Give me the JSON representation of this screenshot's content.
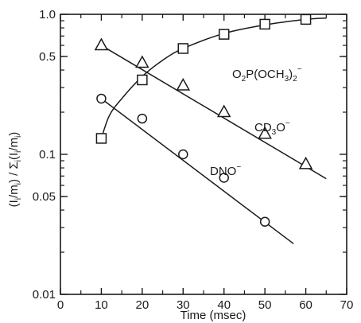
{
  "chart_data": {
    "type": "scatter",
    "xlabel": "Time (msec)",
    "ylabel": "(I_i/m_i)/Σ_i(I_i/m_i)",
    "xlim": [
      0,
      70
    ],
    "ylim": [
      0.01,
      1.0
    ],
    "yscale": "log",
    "grid": false,
    "xticks": [
      0,
      10,
      20,
      30,
      40,
      50,
      60,
      70
    ],
    "xtick_labels": [
      "0",
      "10",
      "20",
      "30",
      "40",
      "50",
      "60",
      "70"
    ],
    "yticks": [
      0.01,
      0.05,
      0.1,
      0.5,
      1.0
    ],
    "ytick_labels": [
      "0.01",
      "0.05",
      "0.1",
      "0.5",
      "1.0"
    ],
    "series": [
      {
        "name": "O2P(OCH3)2-",
        "marker": "square",
        "x": [
          10,
          20,
          30,
          40,
          50,
          60
        ],
        "y": [
          0.13,
          0.34,
          0.57,
          0.72,
          0.85,
          0.92
        ],
        "fit_x": [
          10,
          12,
          15,
          20,
          25,
          30,
          40,
          50,
          60,
          65
        ],
        "fit_y": [
          0.13,
          0.19,
          0.25,
          0.36,
          0.47,
          0.57,
          0.73,
          0.84,
          0.92,
          0.94
        ]
      },
      {
        "name": "CD3O-",
        "marker": "triangle",
        "x": [
          10,
          20,
          30,
          40,
          50,
          60
        ],
        "y": [
          0.6,
          0.45,
          0.31,
          0.2,
          0.14,
          0.085
        ],
        "fit_x": [
          10,
          65
        ],
        "fit_y": [
          0.6,
          0.067
        ]
      },
      {
        "name": "DNO-",
        "marker": "circle",
        "x": [
          10,
          20,
          30,
          40,
          50
        ],
        "y": [
          0.25,
          0.18,
          0.1,
          0.068,
          0.033
        ],
        "fit_x": [
          10,
          57
        ],
        "fit_y": [
          0.25,
          0.023
        ]
      }
    ]
  }
}
